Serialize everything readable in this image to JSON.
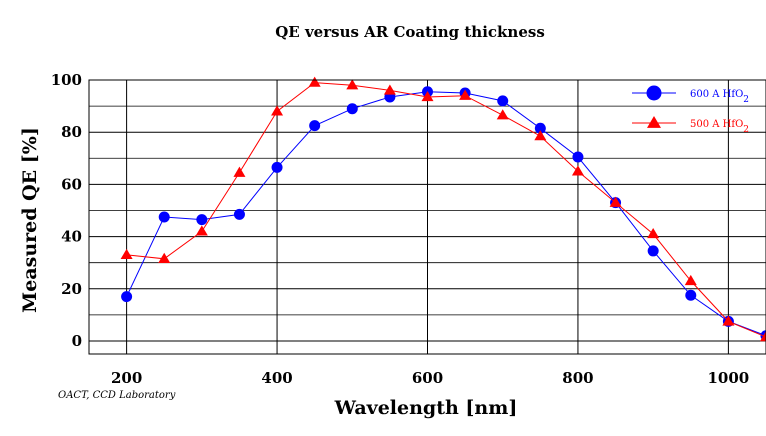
{
  "chart_data": {
    "type": "line",
    "title": "QE versus AR Coating thickness",
    "xlabel": "Wavelength [nm]",
    "ylabel": "Measured QE [%]",
    "xlim": [
      150,
      1050
    ],
    "ylim": [
      -5,
      100
    ],
    "xticks": [
      200,
      400,
      600,
      800,
      1000
    ],
    "xtick_labels": [
      "200",
      "400",
      "600",
      "800",
      "1000"
    ],
    "yticks": [
      0,
      20,
      40,
      60,
      80,
      100
    ],
    "ytick_labels": [
      "0",
      "20",
      "40",
      "60",
      "80",
      "100"
    ],
    "y_minor_gridlines": [
      10,
      30,
      50,
      70,
      90
    ],
    "grid": true,
    "legend_position": "top-right",
    "credit": "OACT, CCD Laboratory",
    "series": [
      {
        "name": "600 A HfO2",
        "legend_main": "600 A HfO",
        "legend_sub": "2",
        "color": "#0000ff",
        "marker": "circle",
        "x": [
          200,
          250,
          300,
          350,
          400,
          450,
          500,
          550,
          600,
          650,
          700,
          750,
          800,
          850,
          900,
          950,
          1000,
          1050
        ],
        "values": [
          17,
          47.5,
          46.5,
          48.5,
          66.5,
          82.5,
          89,
          93.5,
          95.5,
          95,
          92,
          81.5,
          70.5,
          53,
          34.5,
          17.5,
          7.5,
          2
        ]
      },
      {
        "name": "500 A HfO2",
        "legend_main": "500 A HfO",
        "legend_sub": "2",
        "color": "#ff0000",
        "marker": "triangle",
        "x": [
          200,
          250,
          300,
          350,
          400,
          450,
          500,
          550,
          600,
          650,
          700,
          750,
          800,
          850,
          900,
          950,
          1000,
          1050
        ],
        "values": [
          33,
          31.5,
          42,
          64.5,
          88,
          99,
          98,
          96,
          93.5,
          94,
          86.5,
          78.5,
          65,
          53,
          41,
          23,
          7.5,
          1.5
        ]
      }
    ]
  }
}
